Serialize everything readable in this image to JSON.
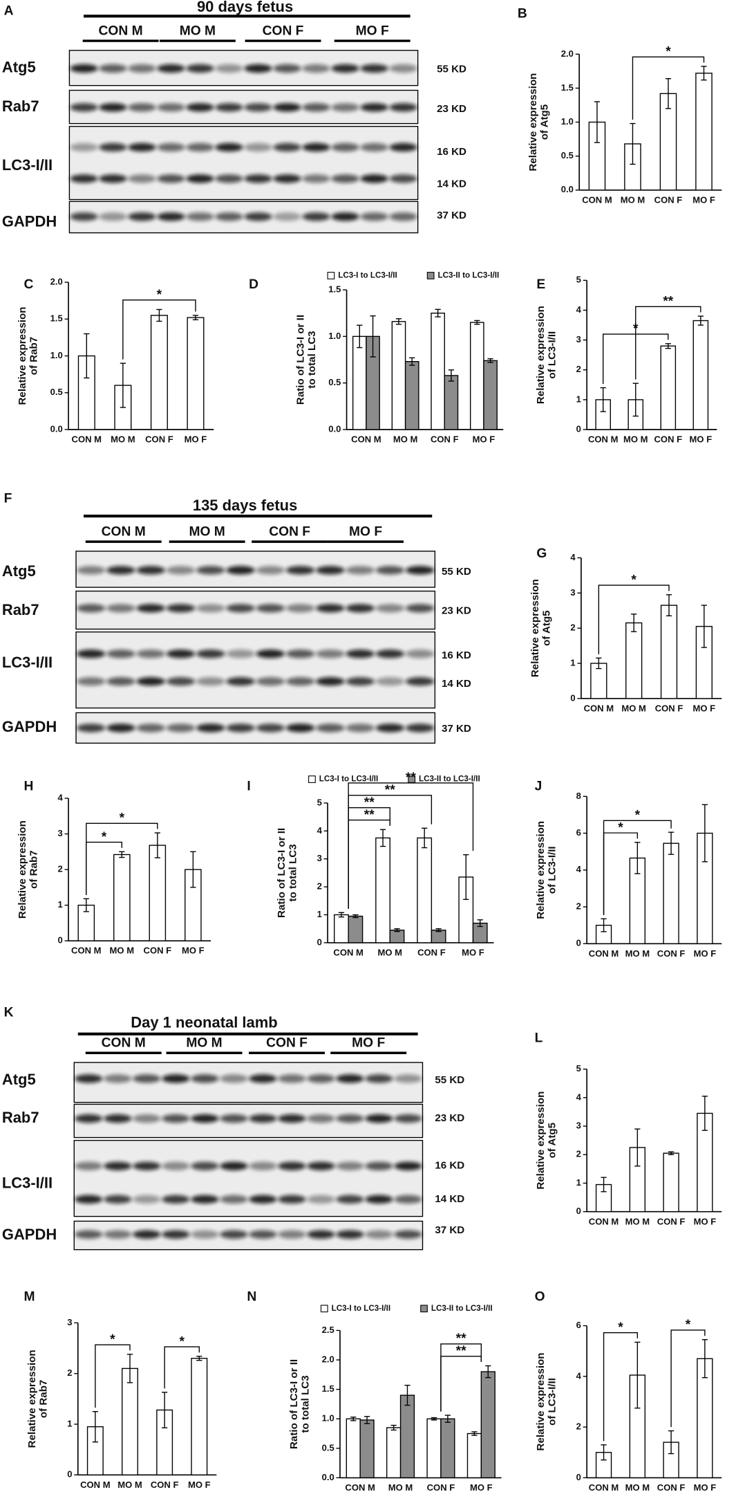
{
  "blots": [
    {
      "letter": "A",
      "title": "90 days fetus",
      "groups": [
        "CON M",
        "MO M",
        "CON F",
        "MO F"
      ],
      "rows": [
        {
          "label": "Atg5",
          "sizes": [
            "55 KD"
          ]
        },
        {
          "label": "Rab7",
          "sizes": [
            "23 KD"
          ]
        },
        {
          "label": "LC3-I/II",
          "sizes": [
            "16 KD",
            "14 KD"
          ]
        },
        {
          "label": "GAPDH",
          "sizes": [
            "37 KD"
          ]
        }
      ]
    },
    {
      "letter": "F",
      "title": "135 days fetus",
      "groups": [
        "CON M",
        "MO M",
        "CON F",
        "MO F"
      ],
      "rows": [
        {
          "label": "Atg5",
          "sizes": [
            "55 KD"
          ]
        },
        {
          "label": "Rab7",
          "sizes": [
            "23 KD"
          ]
        },
        {
          "label": "LC3-I/II",
          "sizes": [
            "16 KD",
            "14 KD"
          ]
        },
        {
          "label": "GAPDH",
          "sizes": [
            "37 KD"
          ]
        }
      ]
    },
    {
      "letter": "K",
      "title": "Day 1 neonatal lamb",
      "groups": [
        "CON M",
        "MO M",
        "CON F",
        "MO F"
      ],
      "rows": [
        {
          "label": "Atg5",
          "sizes": [
            "55 KD"
          ]
        },
        {
          "label": "Rab7",
          "sizes": [
            "23 KD"
          ]
        },
        {
          "label": "LC3-I/II",
          "sizes": [
            "16 KD",
            "14 KD"
          ]
        },
        {
          "label": "GAPDH",
          "sizes": [
            "37 KD"
          ]
        }
      ]
    }
  ],
  "chart_data": [
    {
      "type": "bar",
      "panel": "B",
      "ylabel": [
        "Relative expression",
        "of Atg5"
      ],
      "categories": [
        "CON M",
        "MO M",
        "CON F",
        "MO F"
      ],
      "values": [
        1.0,
        0.68,
        1.42,
        1.72
      ],
      "errors": [
        0.3,
        0.3,
        0.22,
        0.1
      ],
      "color": "#ffffff",
      "ylim": [
        0,
        2
      ],
      "yticks": [
        {
          "value": 0,
          "label": "0.0"
        },
        0.5,
        {
          "value": 1,
          "label": "1.0"
        },
        1.5,
        {
          "value": 2,
          "label": "2.0"
        }
      ],
      "brackets": [
        {
          "from": 1,
          "to": 3,
          "label": "*"
        }
      ]
    },
    {
      "type": "bar",
      "panel": "C",
      "ylabel": [
        "Relative expression",
        "of Rab7"
      ],
      "categories": [
        "CON M",
        "MO M",
        "CON F",
        "MO F"
      ],
      "values": [
        1.0,
        0.6,
        1.55,
        1.52
      ],
      "errors": [
        0.3,
        0.3,
        0.08,
        0.03
      ],
      "color": "#ffffff",
      "ylim": [
        0,
        2
      ],
      "yticks": [
        {
          "value": 0,
          "label": "0.0"
        },
        0.5,
        {
          "value": 1,
          "label": "1.0"
        },
        1.5,
        {
          "value": 2,
          "label": "2.0"
        }
      ],
      "brackets": [
        {
          "from": 1,
          "to": 3,
          "label": "*"
        }
      ]
    },
    {
      "type": "bar",
      "panel": "D",
      "ylabel": [
        "Ratio of LC3-I or II",
        "to total LC3"
      ],
      "categories": [
        "CON M",
        "MO M",
        "CON F",
        "MO F"
      ],
      "series": [
        {
          "name": "LC3-I to LC3-I/II",
          "color": "#ffffff",
          "values": [
            1.0,
            1.16,
            1.25,
            1.15
          ],
          "errors": [
            0.12,
            0.03,
            0.04,
            0.02
          ]
        },
        {
          "name": "LC3-II to LC3-I/II",
          "color": "#8c8c8c",
          "values": [
            1.0,
            0.73,
            0.58,
            0.74
          ],
          "errors": [
            0.22,
            0.04,
            0.06,
            0.02
          ]
        }
      ],
      "ylim": [
        0,
        1.5
      ],
      "yticks": [
        {
          "value": 0,
          "label": "0.0"
        },
        0.5,
        {
          "value": 1,
          "label": "1.0"
        },
        1.5
      ],
      "legend": "top"
    },
    {
      "type": "bar",
      "panel": "E",
      "ylabel": [
        "Relative expression",
        "of LC3-I/II"
      ],
      "categories": [
        "CON M",
        "MO M",
        "CON F",
        "MO F"
      ],
      "values": [
        1.0,
        1.0,
        2.8,
        3.65
      ],
      "errors": [
        0.4,
        0.55,
        0.08,
        0.15
      ],
      "color": "#ffffff",
      "ylim": [
        0,
        5
      ],
      "yticks": [
        0,
        1,
        2,
        3,
        4,
        5
      ],
      "brackets": [
        {
          "from": 0,
          "to": 2,
          "label": "*"
        },
        {
          "from": 1,
          "to": 3,
          "label": "**"
        }
      ]
    },
    {
      "type": "bar",
      "panel": "G",
      "ylabel": [
        "Relative expression",
        "of Atg5"
      ],
      "categories": [
        "CON M",
        "MO M",
        "CON F",
        "MO F"
      ],
      "values": [
        1.0,
        2.15,
        2.65,
        2.05
      ],
      "errors": [
        0.15,
        0.25,
        0.3,
        0.6
      ],
      "color": "#ffffff",
      "ylim": [
        0,
        4
      ],
      "yticks": [
        0,
        1,
        2,
        3,
        4
      ],
      "brackets": [
        {
          "from": 0,
          "to": 2,
          "label": "*"
        }
      ]
    },
    {
      "type": "bar",
      "panel": "H",
      "ylabel": [
        "Relative expression",
        "of Rab7"
      ],
      "categories": [
        "CON M",
        "MO M",
        "CON F",
        "MO F"
      ],
      "values": [
        1.0,
        2.42,
        2.68,
        2.0
      ],
      "errors": [
        0.18,
        0.08,
        0.35,
        0.5
      ],
      "color": "#ffffff",
      "ylim": [
        0,
        4
      ],
      "yticks": [
        0,
        1,
        2,
        3,
        4
      ],
      "brackets": [
        {
          "from": 0,
          "to": 1,
          "label": "*"
        },
        {
          "from": 0,
          "to": 2,
          "label": "*"
        }
      ]
    },
    {
      "type": "bar",
      "panel": "I",
      "ylabel": [
        "Ratio of LC3-I or II",
        "to total LC3"
      ],
      "categories": [
        "CON M",
        "MO M",
        "CON F",
        "MO F"
      ],
      "series": [
        {
          "name": "LC3-I to LC3-I/II",
          "color": "#ffffff",
          "values": [
            1.0,
            3.75,
            3.75,
            2.35
          ],
          "errors": [
            0.08,
            0.3,
            0.35,
            0.8
          ]
        },
        {
          "name": "LC3-II to LC3-I/II",
          "color": "#8c8c8c",
          "values": [
            0.95,
            0.45,
            0.45,
            0.7
          ],
          "errors": [
            0.05,
            0.05,
            0.05,
            0.12
          ]
        }
      ],
      "ylim": [
        0,
        5
      ],
      "yticks": [
        0,
        1,
        2,
        3,
        4,
        5
      ],
      "legend": "top",
      "brackets": [
        {
          "from": 0,
          "to": 1,
          "label": "**"
        },
        {
          "from": 0,
          "to": 1,
          "label": "**"
        },
        {
          "from": 0,
          "to": 2,
          "label": "**"
        },
        {
          "from": 0,
          "to": 3,
          "label": "**"
        }
      ]
    },
    {
      "type": "bar",
      "panel": "J",
      "ylabel": [
        "Relative expression",
        "of LC3-I/II"
      ],
      "categories": [
        "CON M",
        "MO M",
        "CON F",
        "MO F"
      ],
      "values": [
        1.0,
        4.65,
        5.45,
        6.0
      ],
      "errors": [
        0.35,
        0.85,
        0.6,
        1.55
      ],
      "color": "#ffffff",
      "ylim": [
        0,
        8
      ],
      "yticks": [
        0,
        2,
        4,
        6,
        8
      ],
      "brackets": [
        {
          "from": 0,
          "to": 1,
          "label": "*"
        },
        {
          "from": 0,
          "to": 2,
          "label": "*"
        }
      ]
    },
    {
      "type": "bar",
      "panel": "L",
      "ylabel": [
        "Relative expression",
        "of Atg5"
      ],
      "categories": [
        "CON M",
        "MO M",
        "CON F",
        "MO F"
      ],
      "values": [
        0.95,
        2.25,
        2.05,
        3.45
      ],
      "errors": [
        0.25,
        0.65,
        0.05,
        0.6
      ],
      "color": "#ffffff",
      "ylim": [
        0,
        5
      ],
      "yticks": [
        0,
        1,
        2,
        3,
        4,
        5
      ]
    },
    {
      "type": "bar",
      "panel": "M",
      "ylabel": [
        "Relative expression",
        "of Rab7"
      ],
      "categories": [
        "CON M",
        "MO M",
        "CON F",
        "MO F"
      ],
      "values": [
        0.95,
        2.1,
        1.28,
        2.3
      ],
      "errors": [
        0.3,
        0.28,
        0.35,
        0.04
      ],
      "color": "#ffffff",
      "ylim": [
        0,
        3
      ],
      "yticks": [
        0,
        1,
        2,
        3
      ],
      "brackets": [
        {
          "from": 0,
          "to": 1,
          "label": "*"
        },
        {
          "from": 2,
          "to": 3,
          "label": "*"
        }
      ]
    },
    {
      "type": "bar",
      "panel": "N",
      "ylabel": [
        "Ratio of LC3-I or II",
        "to total LC3"
      ],
      "categories": [
        "CON M",
        "MO M",
        "CON F",
        "MO F"
      ],
      "series": [
        {
          "name": "LC3-I to LC3-I/II",
          "color": "#ffffff",
          "values": [
            1.0,
            0.85,
            1.0,
            0.75
          ],
          "errors": [
            0.03,
            0.04,
            0.02,
            0.03
          ]
        },
        {
          "name": "LC3-II to LC3-I/II",
          "color": "#8c8c8c",
          "values": [
            0.98,
            1.4,
            1.0,
            1.8
          ],
          "errors": [
            0.06,
            0.17,
            0.06,
            0.1
          ]
        }
      ],
      "ylim": [
        0,
        2.5
      ],
      "yticks": [
        {
          "value": 0,
          "label": "0.0"
        },
        0.5,
        {
          "value": 1,
          "label": "1.0"
        },
        1.5,
        {
          "value": 2,
          "label": "2.0"
        },
        2.5
      ],
      "legend": "top",
      "brackets": [
        {
          "from": 2,
          "to": 3,
          "label": "**"
        },
        {
          "from": 2,
          "to": 3,
          "label": "**"
        }
      ]
    },
    {
      "type": "bar",
      "panel": "O",
      "ylabel": [
        "Relative expression",
        "of LC3-I/II"
      ],
      "categories": [
        "CON M",
        "MO M",
        "CON F",
        "MO F"
      ],
      "values": [
        1.0,
        4.05,
        1.4,
        4.7
      ],
      "errors": [
        0.3,
        1.3,
        0.45,
        0.75
      ],
      "color": "#ffffff",
      "ylim": [
        0,
        6
      ],
      "yticks": [
        0,
        2,
        4,
        6
      ],
      "brackets": [
        {
          "from": 0,
          "to": 1,
          "label": "*"
        },
        {
          "from": 2,
          "to": 3,
          "label": "*"
        }
      ]
    }
  ]
}
